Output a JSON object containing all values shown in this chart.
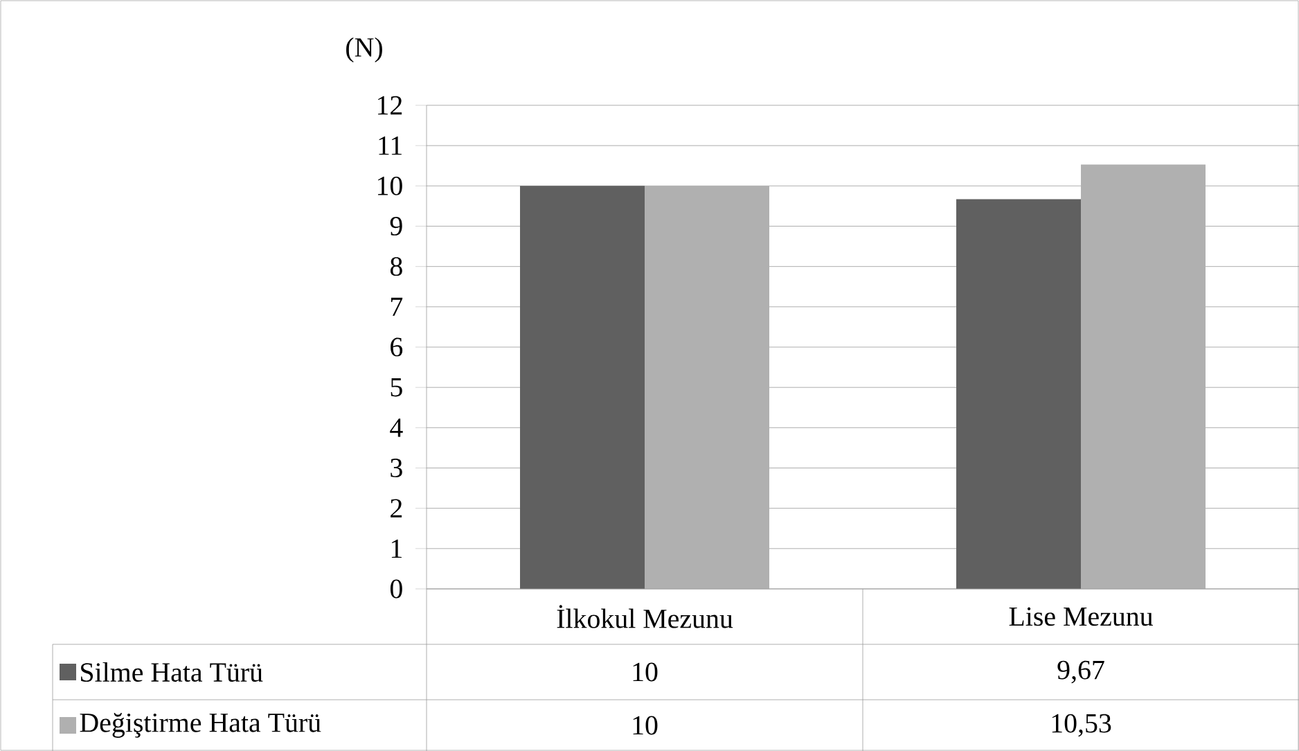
{
  "chart_data": {
    "type": "bar",
    "ylabel": "(N)",
    "categories": [
      "İlkokul Mezunu",
      "Lise Mezunu"
    ],
    "series": [
      {
        "name": "Silme Hata Türü",
        "color": "#606060",
        "values": [
          10,
          9.67
        ],
        "value_labels": [
          "10",
          "9,67"
        ]
      },
      {
        "name": "Değiştirme Hata Türü",
        "color": "#b0b0b0",
        "values": [
          10,
          10.53
        ],
        "value_labels": [
          "10",
          "10,53"
        ]
      }
    ],
    "ylim": [
      0,
      12
    ],
    "yticks": [
      0,
      1,
      2,
      3,
      4,
      5,
      6,
      7,
      8,
      9,
      10,
      11,
      12
    ],
    "grid": "y",
    "legend": "bottom"
  }
}
